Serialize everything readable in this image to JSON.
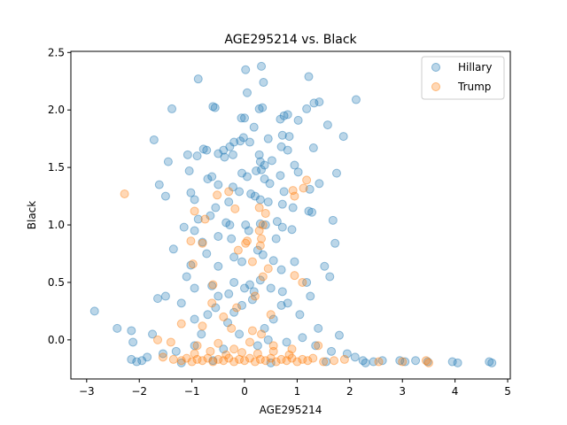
{
  "chart_data": {
    "type": "scatter",
    "title": "AGE295214 vs. Black",
    "xlabel": "AGE295214",
    "ylabel": "Black",
    "xlim": [
      -3.3,
      5.05
    ],
    "ylim": [
      -0.34,
      2.51
    ],
    "xticks": [
      -3,
      -2,
      -1,
      0,
      1,
      2,
      3,
      4,
      5
    ],
    "yticks": [
      0.0,
      0.5,
      1.0,
      1.5,
      2.0,
      2.5
    ],
    "xtick_labels": [
      "−3",
      "−2",
      "−1",
      "0",
      "1",
      "2",
      "3",
      "4",
      "5"
    ],
    "ytick_labels": [
      "0.0",
      "0.5",
      "1.0",
      "1.5",
      "2.0",
      "2.5"
    ],
    "grid": false,
    "legend_position": "top-right",
    "series": [
      {
        "name": "Hillary",
        "color": "#1f77b4",
        "points": [
          [
            0.02,
            2.35
          ],
          [
            0.32,
            2.38
          ],
          [
            -0.88,
            2.27
          ],
          [
            1.22,
            2.29
          ],
          [
            0.05,
            2.15
          ],
          [
            0.36,
            2.24
          ],
          [
            1.32,
            2.06
          ],
          [
            1.42,
            2.07
          ],
          [
            1.18,
            2.01
          ],
          [
            2.12,
            2.09
          ],
          [
            -1.38,
            2.01
          ],
          [
            -0.56,
            2.02
          ],
          [
            -0.6,
            2.03
          ],
          [
            -0.06,
            1.93
          ],
          [
            0.0,
            1.93
          ],
          [
            0.28,
            2.01
          ],
          [
            0.34,
            2.02
          ],
          [
            0.75,
            1.95
          ],
          [
            0.82,
            1.96
          ],
          [
            0.68,
            1.92
          ],
          [
            1.02,
            1.91
          ],
          [
            1.58,
            1.87
          ],
          [
            -1.72,
            1.74
          ],
          [
            0.18,
            1.85
          ],
          [
            -0.02,
            1.76
          ],
          [
            0.45,
            1.75
          ],
          [
            0.72,
            1.78
          ],
          [
            0.85,
            1.77
          ],
          [
            1.31,
            1.67
          ],
          [
            1.88,
            1.77
          ],
          [
            -1.08,
            1.61
          ],
          [
            -0.78,
            1.66
          ],
          [
            -0.72,
            1.65
          ],
          [
            -0.4,
            1.65
          ],
          [
            -0.28,
            1.68
          ],
          [
            -0.2,
            1.72
          ],
          [
            -0.08,
            1.73
          ],
          [
            0.1,
            1.72
          ],
          [
            0.28,
            1.61
          ],
          [
            0.7,
            1.68
          ],
          [
            0.82,
            1.65
          ],
          [
            -1.45,
            1.55
          ],
          [
            -1.05,
            1.47
          ],
          [
            -0.9,
            1.6
          ],
          [
            -0.5,
            1.62
          ],
          [
            -0.38,
            1.59
          ],
          [
            -0.22,
            1.61
          ],
          [
            0.3,
            1.55
          ],
          [
            0.38,
            1.52
          ],
          [
            0.52,
            1.56
          ],
          [
            0.95,
            1.52
          ],
          [
            1.02,
            1.46
          ],
          [
            1.75,
            1.45
          ],
          [
            -1.62,
            1.35
          ],
          [
            -1.5,
            1.25
          ],
          [
            -1.02,
            1.28
          ],
          [
            -0.95,
            1.22
          ],
          [
            -0.7,
            1.4
          ],
          [
            -0.62,
            1.42
          ],
          [
            -0.5,
            1.35
          ],
          [
            -0.22,
            1.33
          ],
          [
            -0.05,
            1.45
          ],
          [
            0.05,
            1.42
          ],
          [
            0.22,
            1.47
          ],
          [
            0.32,
            1.48
          ],
          [
            0.38,
            1.4
          ],
          [
            0.48,
            1.36
          ],
          [
            0.68,
            1.43
          ],
          [
            0.75,
            1.29
          ],
          [
            1.24,
            1.31
          ],
          [
            1.42,
            1.36
          ],
          [
            -0.55,
            1.15
          ],
          [
            -0.3,
            1.2
          ],
          [
            -0.1,
            1.29
          ],
          [
            0.12,
            1.27
          ],
          [
            0.2,
            1.25
          ],
          [
            0.3,
            1.22
          ],
          [
            0.45,
            1.2
          ],
          [
            0.72,
            1.18
          ],
          [
            0.92,
            1.15
          ],
          [
            1.22,
            1.12
          ],
          [
            1.28,
            1.11
          ],
          [
            -0.88,
            1.05
          ],
          [
            -0.65,
            1.08
          ],
          [
            -0.35,
            1.02
          ],
          [
            -0.28,
            1.0
          ],
          [
            0.02,
            1.0
          ],
          [
            0.08,
            0.95
          ],
          [
            0.3,
            1.01
          ],
          [
            0.4,
            1.0
          ],
          [
            0.62,
            1.03
          ],
          [
            0.72,
            0.98
          ],
          [
            1.68,
            1.04
          ],
          [
            -1.15,
            0.98
          ],
          [
            -0.95,
            0.95
          ],
          [
            -0.8,
            0.85
          ],
          [
            -0.5,
            0.9
          ],
          [
            -0.25,
            0.88
          ],
          [
            0.6,
            0.88
          ],
          [
            0.9,
            0.96
          ],
          [
            1.72,
            0.84
          ],
          [
            -1.35,
            0.79
          ],
          [
            -1.02,
            0.65
          ],
          [
            -0.72,
            0.75
          ],
          [
            -0.5,
            0.64
          ],
          [
            -0.05,
            0.68
          ],
          [
            -0.2,
            0.72
          ],
          [
            0.25,
            0.78
          ],
          [
            0.35,
            0.74
          ],
          [
            0.55,
            0.69
          ],
          [
            0.7,
            0.61
          ],
          [
            0.95,
            0.68
          ],
          [
            1.52,
            0.64
          ],
          [
            -1.65,
            0.36
          ],
          [
            -1.5,
            0.38
          ],
          [
            -1.1,
            0.55
          ],
          [
            -0.95,
            0.45
          ],
          [
            -0.62,
            0.47
          ],
          [
            -0.5,
            0.38
          ],
          [
            -0.3,
            0.4
          ],
          [
            -0.2,
            0.5
          ],
          [
            0.0,
            0.45
          ],
          [
            0.1,
            0.48
          ],
          [
            0.18,
            0.42
          ],
          [
            0.3,
            0.52
          ],
          [
            0.5,
            0.45
          ],
          [
            0.72,
            0.42
          ],
          [
            0.82,
            0.32
          ],
          [
            1.18,
            0.5
          ],
          [
            1.62,
            0.55
          ],
          [
            -2.85,
            0.25
          ],
          [
            -2.42,
            0.1
          ],
          [
            -2.15,
            0.08
          ],
          [
            -2.12,
            -0.02
          ],
          [
            -1.75,
            0.05
          ],
          [
            -1.2,
            0.32
          ],
          [
            -0.95,
            0.18
          ],
          [
            -0.7,
            0.22
          ],
          [
            -0.55,
            0.28
          ],
          [
            -0.32,
            0.15
          ],
          [
            -0.2,
            0.24
          ],
          [
            -0.05,
            0.3
          ],
          [
            0.15,
            0.35
          ],
          [
            0.38,
            0.1
          ],
          [
            0.55,
            0.18
          ],
          [
            0.7,
            0.3
          ],
          [
            1.05,
            0.22
          ],
          [
            1.25,
            0.38
          ],
          [
            1.4,
            0.1
          ],
          [
            1.8,
            0.04
          ],
          [
            -1.85,
            -0.15
          ],
          [
            -1.55,
            -0.12
          ],
          [
            -1.3,
            -0.1
          ],
          [
            -0.95,
            -0.05
          ],
          [
            -0.82,
            0.05
          ],
          [
            -0.4,
            -0.08
          ],
          [
            -0.1,
            0.05
          ],
          [
            0.25,
            -0.05
          ],
          [
            0.45,
            0.0
          ],
          [
            0.8,
            -0.02
          ],
          [
            1.1,
            0.02
          ],
          [
            1.35,
            -0.05
          ],
          [
            1.65,
            -0.1
          ],
          [
            1.95,
            -0.12
          ],
          [
            2.1,
            -0.15
          ],
          [
            2.25,
            -0.18
          ],
          [
            -2.15,
            -0.17
          ],
          [
            -2.05,
            -0.19
          ],
          [
            -1.95,
            -0.18
          ],
          [
            -1.2,
            -0.2
          ],
          [
            -0.6,
            -0.18
          ],
          [
            0.5,
            -0.2
          ],
          [
            1.55,
            -0.19
          ],
          [
            2.3,
            -0.2
          ],
          [
            2.45,
            -0.19
          ],
          [
            2.62,
            -0.18
          ],
          [
            2.95,
            -0.18
          ],
          [
            3.05,
            -0.19
          ],
          [
            3.25,
            -0.18
          ],
          [
            3.48,
            -0.19
          ],
          [
            3.95,
            -0.19
          ],
          [
            4.05,
            -0.2
          ],
          [
            4.65,
            -0.19
          ],
          [
            4.7,
            -0.2
          ]
        ]
      },
      {
        "name": "Trump",
        "color": "#ff7f0e",
        "points": [
          [
            -2.28,
            1.27
          ],
          [
            1.12,
            1.32
          ],
          [
            1.18,
            1.39
          ],
          [
            0.92,
            1.3
          ],
          [
            0.95,
            1.25
          ],
          [
            -0.3,
            1.29
          ],
          [
            -0.52,
            1.26
          ],
          [
            -0.95,
            1.12
          ],
          [
            -0.75,
            1.05
          ],
          [
            -0.18,
            1.14
          ],
          [
            0.28,
            1.15
          ],
          [
            0.4,
            1.1
          ],
          [
            0.35,
            1.0
          ],
          [
            0.28,
            0.95
          ],
          [
            0.32,
            0.88
          ],
          [
            0.05,
            0.86
          ],
          [
            0.02,
            0.84
          ],
          [
            0.3,
            0.82
          ],
          [
            -1.02,
            0.86
          ],
          [
            -0.8,
            0.84
          ],
          [
            -0.98,
            0.66
          ],
          [
            -0.12,
            0.78
          ],
          [
            0.15,
            0.68
          ],
          [
            0.35,
            0.55
          ],
          [
            0.45,
            0.62
          ],
          [
            -0.6,
            0.48
          ],
          [
            0.2,
            0.38
          ],
          [
            0.95,
            0.56
          ],
          [
            -0.62,
            0.32
          ],
          [
            -0.15,
            0.28
          ],
          [
            -0.4,
            0.2
          ],
          [
            0.5,
            0.22
          ],
          [
            1.1,
            0.5
          ],
          [
            -1.2,
            0.14
          ],
          [
            -0.8,
            0.12
          ],
          [
            -0.25,
            0.1
          ],
          [
            0.15,
            0.08
          ],
          [
            0.32,
            0.05
          ],
          [
            -1.65,
            0.0
          ],
          [
            -1.4,
            -0.02
          ],
          [
            -0.9,
            -0.05
          ],
          [
            -0.5,
            -0.03
          ],
          [
            -0.2,
            -0.08
          ],
          [
            0.1,
            -0.02
          ],
          [
            0.55,
            -0.05
          ],
          [
            0.9,
            -0.08
          ],
          [
            1.4,
            -0.05
          ],
          [
            -1.55,
            -0.15
          ],
          [
            -1.35,
            -0.17
          ],
          [
            -1.2,
            -0.18
          ],
          [
            -1.1,
            -0.16
          ],
          [
            -1.0,
            -0.19
          ],
          [
            -0.9,
            -0.17
          ],
          [
            -0.8,
            -0.18
          ],
          [
            -0.7,
            -0.16
          ],
          [
            -0.6,
            -0.19
          ],
          [
            -0.5,
            -0.17
          ],
          [
            -0.4,
            -0.18
          ],
          [
            -0.3,
            -0.16
          ],
          [
            -0.2,
            -0.19
          ],
          [
            -0.1,
            -0.17
          ],
          [
            0.0,
            -0.18
          ],
          [
            0.1,
            -0.16
          ],
          [
            0.2,
            -0.19
          ],
          [
            0.3,
            -0.17
          ],
          [
            0.4,
            -0.18
          ],
          [
            0.5,
            -0.16
          ],
          [
            0.6,
            -0.19
          ],
          [
            0.7,
            -0.17
          ],
          [
            0.8,
            -0.18
          ],
          [
            0.9,
            -0.16
          ],
          [
            1.0,
            -0.19
          ],
          [
            1.1,
            -0.17
          ],
          [
            1.2,
            -0.18
          ],
          [
            1.3,
            -0.16
          ],
          [
            1.5,
            -0.19
          ],
          [
            1.7,
            -0.18
          ],
          [
            1.9,
            -0.17
          ],
          [
            -0.95,
            -0.12
          ],
          [
            -0.65,
            -0.1
          ],
          [
            -0.35,
            -0.13
          ],
          [
            -0.05,
            -0.11
          ],
          [
            0.25,
            -0.12
          ],
          [
            0.55,
            -0.1
          ],
          [
            0.85,
            -0.13
          ],
          [
            2.55,
            -0.19
          ],
          [
            3.0,
            -0.19
          ],
          [
            3.45,
            -0.18
          ],
          [
            3.5,
            -0.2
          ]
        ]
      }
    ]
  }
}
